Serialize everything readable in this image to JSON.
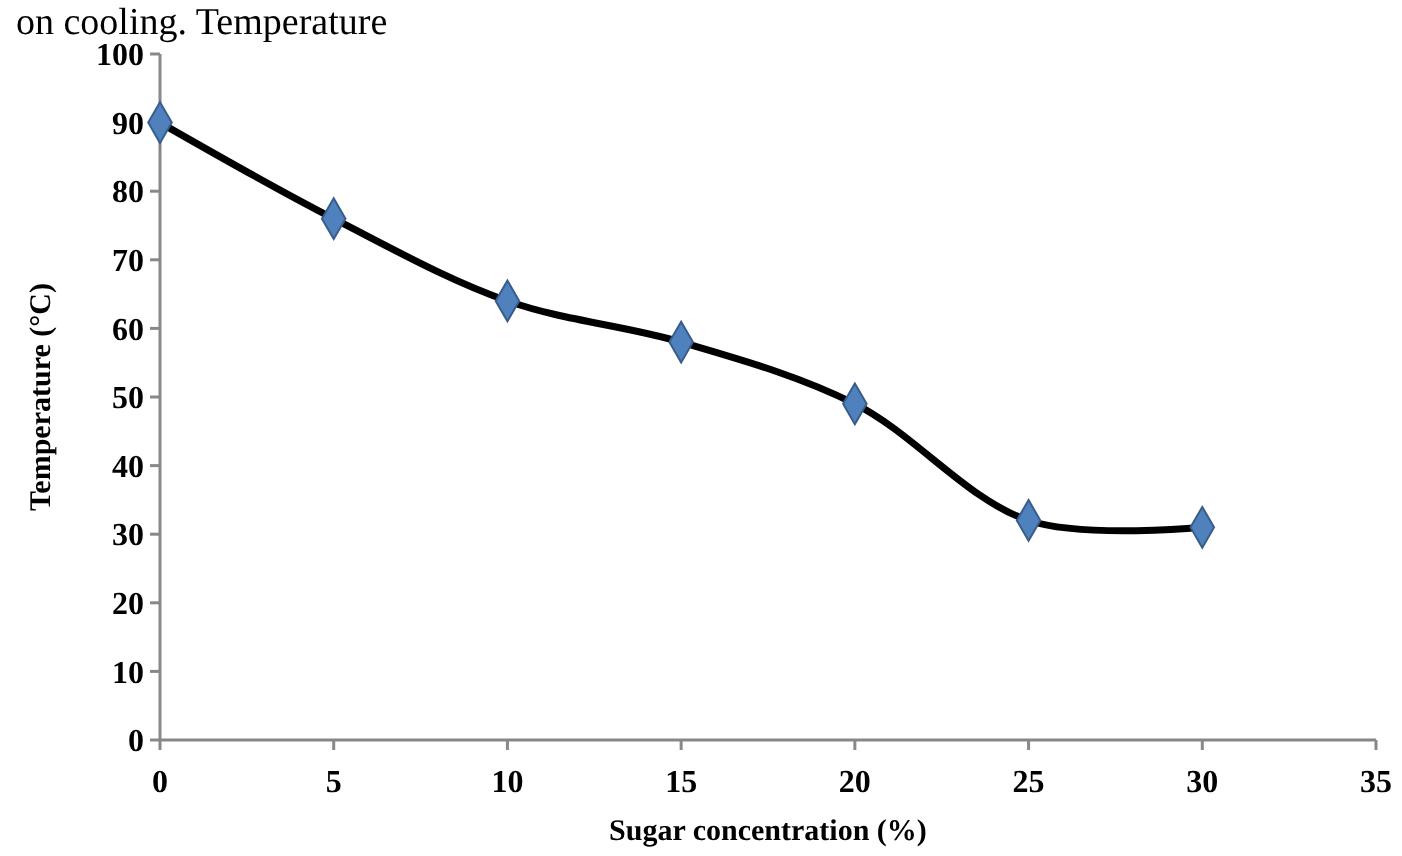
{
  "chart_data": {
    "type": "line",
    "xlabel": "Sugar concentration  (%)",
    "ylabel": "Temperature  (°C)",
    "annotations": [
      "on cooling. Temperature"
    ],
    "x": [
      0,
      5,
      10,
      15,
      20,
      25,
      30
    ],
    "series": [
      {
        "color": "#000000",
        "values": [
          90,
          76,
          64,
          58,
          49,
          32,
          31
        ]
      }
    ],
    "marker": "diamond",
    "line_style": "solid",
    "xlim": [
      0,
      35
    ],
    "xticks": [
      0,
      5,
      10,
      15,
      20,
      25,
      30,
      35
    ],
    "ylim": [
      0,
      100
    ],
    "yticks": [
      0,
      10,
      20,
      30,
      40,
      50,
      60,
      70,
      80,
      90,
      100
    ],
    "grid": false
  }
}
